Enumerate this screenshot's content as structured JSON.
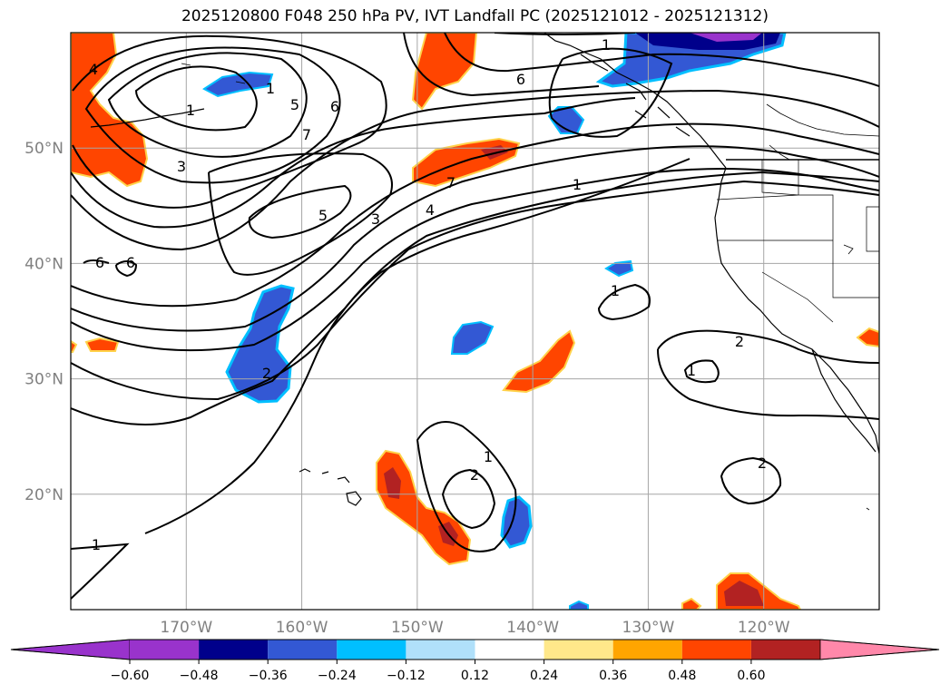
{
  "title": "2025120800 F048 250 hPa PV, IVT Landfall PC (2025121012 - 2025121312)",
  "map": {
    "lon_range": [
      -180,
      -110
    ],
    "lat_range": [
      10,
      60
    ],
    "lat_ticks": [
      {
        "value": 20,
        "label": "20°N"
      },
      {
        "value": 30,
        "label": "30°N"
      },
      {
        "value": 40,
        "label": "40°N"
      },
      {
        "value": 50,
        "label": "50°N"
      }
    ],
    "lon_ticks": [
      {
        "value": -170,
        "label": "170°W"
      },
      {
        "value": -160,
        "label": "160°W"
      },
      {
        "value": -150,
        "label": "150°W"
      },
      {
        "value": -140,
        "label": "140°W"
      },
      {
        "value": -130,
        "label": "130°W"
      },
      {
        "value": -120,
        "label": "120°W"
      }
    ],
    "grid": true,
    "contour_labels": [
      "4",
      "1",
      "3",
      "5",
      "6",
      "7",
      "5",
      "3",
      "4",
      "7",
      "6",
      "1",
      "6",
      "6",
      "2",
      "1",
      "1",
      "2",
      "1",
      "2",
      "1",
      "2",
      "1",
      "1"
    ]
  },
  "colorbar": {
    "ticks": [
      "−0.60",
      "−0.48",
      "−0.36",
      "−0.24",
      "−0.12",
      "0.12",
      "0.24",
      "0.36",
      "0.48",
      "0.60"
    ],
    "colors": {
      "under": "#9933cc",
      "bins": [
        "#9933cc",
        "#00008b",
        "#3358d4",
        "#00bfff",
        "#b0e0fa",
        "#ffffff",
        "#ffe88a",
        "#ffa500",
        "#ff4500",
        "#b22222"
      ],
      "over": "#ff88aa"
    }
  }
}
